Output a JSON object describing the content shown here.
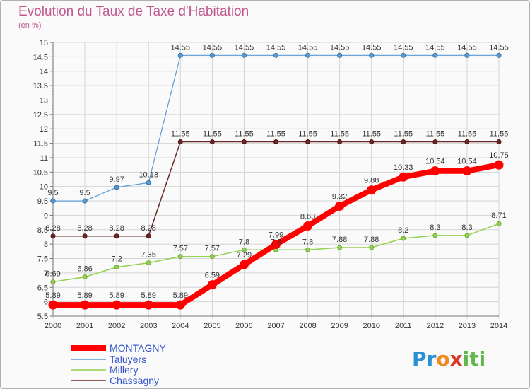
{
  "title": "Evolution du Taux de Taxe d'Habitation",
  "unit": "(en %)",
  "brand": {
    "parts": [
      "Pr",
      "o",
      "x",
      "iti"
    ],
    "colors": [
      "#2b8fd4",
      "#f08a1c",
      "#d93a2a",
      "#5fb84a"
    ]
  },
  "colors": {
    "montagny": "#ff0000",
    "taluyers": "#5b9bd5",
    "millery": "#92d050",
    "chassagny": "#6b2626",
    "legend_text": "#3355cc",
    "grid": "#d4d4d4"
  },
  "chart_data": {
    "type": "line",
    "x": [
      "2000",
      "2001",
      "2002",
      "2003",
      "2004",
      "2005",
      "2006",
      "2007",
      "2008",
      "2009",
      "2010",
      "2011",
      "2012",
      "2013",
      "2014"
    ],
    "ylim": [
      5.5,
      15
    ],
    "yticks": [
      "5.5",
      "6",
      "6.5",
      "7",
      "7.5",
      "8",
      "8.5",
      "9",
      "9.5",
      "10",
      "10.5",
      "11",
      "11.5",
      "12",
      "12.5",
      "13",
      "13.5",
      "14",
      "14.5",
      "15"
    ],
    "grid": true,
    "legend_position": "bottom-left",
    "series": [
      {
        "name": "MONTAGNY",
        "values": [
          5.89,
          5.89,
          5.89,
          5.89,
          5.89,
          6.59,
          7.29,
          7.99,
          8.63,
          9.32,
          9.88,
          10.33,
          10.54,
          10.54,
          10.75
        ],
        "labels": [
          "5.89",
          "5.89",
          "5.89",
          "5.89",
          "5.89",
          "6.59",
          "7.29",
          "7.99",
          "8.63",
          "9.32",
          "9.88",
          "10.33",
          "10.54",
          "10.54",
          "10.75"
        ]
      },
      {
        "name": "Taluyers",
        "values": [
          9.5,
          9.5,
          9.97,
          10.13,
          14.55,
          14.55,
          14.55,
          14.55,
          14.55,
          14.55,
          14.55,
          14.55,
          14.55,
          14.55,
          14.55
        ],
        "labels": [
          "9.5",
          "9.5",
          "9.97",
          "10.13",
          "14.55",
          "14.55",
          "14.55",
          "14.55",
          "14.55",
          "14.55",
          "14.55",
          "14.55",
          "14.55",
          "14.55",
          "14.55"
        ]
      },
      {
        "name": "Millery",
        "values": [
          6.69,
          6.86,
          7.2,
          7.35,
          7.57,
          7.57,
          7.8,
          7.8,
          7.8,
          7.88,
          7.88,
          8.2,
          8.3,
          8.3,
          8.71
        ],
        "labels": [
          "6.69",
          "6.86",
          "7.2",
          "7.35",
          "7.57",
          "7.57",
          "7.8",
          "7.8",
          "7.8",
          "7.88",
          "7.88",
          "8.2",
          "8.3",
          "8.3",
          "8.71"
        ]
      },
      {
        "name": "Chassagny",
        "values": [
          8.28,
          8.28,
          8.28,
          8.28,
          11.55,
          11.55,
          11.55,
          11.55,
          11.55,
          11.55,
          11.55,
          11.55,
          11.55,
          11.55,
          11.55
        ],
        "labels": [
          "8.28",
          "8.28",
          "8.28",
          "8.28",
          "11.55",
          "11.55",
          "11.55",
          "11.55",
          "11.55",
          "11.55",
          "11.55",
          "11.55",
          "11.55",
          "11.55",
          "11.55"
        ]
      }
    ]
  }
}
